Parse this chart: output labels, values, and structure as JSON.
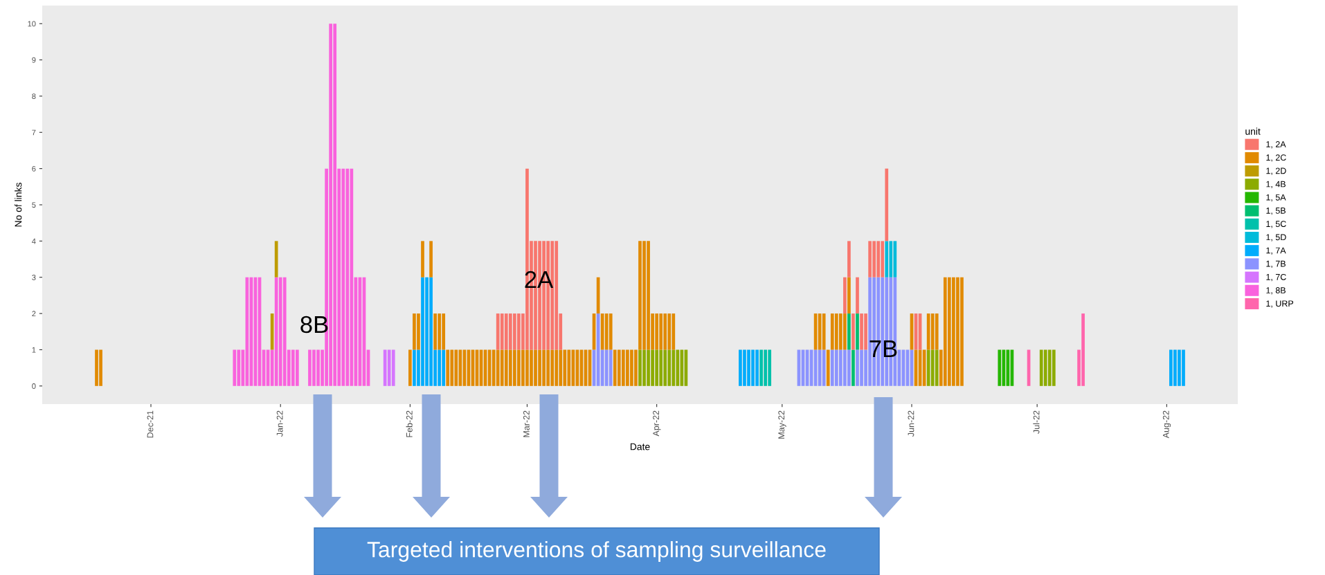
{
  "chart_data": {
    "type": "bar",
    "stacked": true,
    "xlabel": "Date",
    "ylabel": "No of links",
    "legend_title": "unit",
    "legend": "right",
    "grid": false,
    "xlim": [
      "2021-11-05",
      "2022-08-18"
    ],
    "xticks": [
      {
        "value": "2021-12-01",
        "label": "Dec-21"
      },
      {
        "value": "2022-01-01",
        "label": "Jan-22"
      },
      {
        "value": "2022-02-01",
        "label": "Feb-22"
      },
      {
        "value": "2022-03-01",
        "label": "Mar-22"
      },
      {
        "value": "2022-04-01",
        "label": "Apr-22"
      },
      {
        "value": "2022-05-01",
        "label": "May-22"
      },
      {
        "value": "2022-06-01",
        "label": "Jun-22"
      },
      {
        "value": "2022-07-01",
        "label": "Jul-22"
      },
      {
        "value": "2022-08-01",
        "label": "Aug-22"
      }
    ],
    "ylim": [
      -0.5,
      10.5
    ],
    "yticks": [
      0,
      1,
      2,
      3,
      4,
      5,
      6,
      7,
      8,
      9,
      10
    ],
    "x": [
      "2021-11-18",
      "2021-11-19",
      "2021-12-21",
      "2021-12-22",
      "2021-12-23",
      "2021-12-24",
      "2021-12-25",
      "2021-12-26",
      "2021-12-27",
      "2021-12-28",
      "2021-12-29",
      "2021-12-30",
      "2021-12-31",
      "2022-01-01",
      "2022-01-02",
      "2022-01-03",
      "2022-01-04",
      "2022-01-05",
      "2022-01-08",
      "2022-01-09",
      "2022-01-10",
      "2022-01-11",
      "2022-01-12",
      "2022-01-13",
      "2022-01-14",
      "2022-01-15",
      "2022-01-16",
      "2022-01-17",
      "2022-01-18",
      "2022-01-19",
      "2022-01-20",
      "2022-01-21",
      "2022-01-22",
      "2022-01-26",
      "2022-01-27",
      "2022-01-28",
      "2022-02-01",
      "2022-02-02",
      "2022-02-03",
      "2022-02-04",
      "2022-02-05",
      "2022-02-06",
      "2022-02-07",
      "2022-02-08",
      "2022-02-09",
      "2022-02-10",
      "2022-02-11",
      "2022-02-12",
      "2022-02-13",
      "2022-02-14",
      "2022-02-15",
      "2022-02-16",
      "2022-02-17",
      "2022-02-18",
      "2022-02-19",
      "2022-02-20",
      "2022-02-21",
      "2022-02-22",
      "2022-02-23",
      "2022-02-24",
      "2022-02-25",
      "2022-02-26",
      "2022-02-27",
      "2022-02-28",
      "2022-03-01",
      "2022-03-02",
      "2022-03-03",
      "2022-03-04",
      "2022-03-05",
      "2022-03-06",
      "2022-03-07",
      "2022-03-08",
      "2022-03-09",
      "2022-03-10",
      "2022-03-11",
      "2022-03-12",
      "2022-03-13",
      "2022-03-14",
      "2022-03-15",
      "2022-03-16",
      "2022-03-17",
      "2022-03-18",
      "2022-03-19",
      "2022-03-20",
      "2022-03-21",
      "2022-03-22",
      "2022-03-23",
      "2022-03-24",
      "2022-03-25",
      "2022-03-26",
      "2022-03-27",
      "2022-03-28",
      "2022-03-29",
      "2022-03-30",
      "2022-03-31",
      "2022-04-01",
      "2022-04-02",
      "2022-04-03",
      "2022-04-04",
      "2022-04-05",
      "2022-04-06",
      "2022-04-07",
      "2022-04-08",
      "2022-04-21",
      "2022-04-22",
      "2022-04-23",
      "2022-04-24",
      "2022-04-25",
      "2022-04-26",
      "2022-04-27",
      "2022-04-28",
      "2022-05-05",
      "2022-05-06",
      "2022-05-07",
      "2022-05-08",
      "2022-05-09",
      "2022-05-10",
      "2022-05-11",
      "2022-05-12",
      "2022-05-13",
      "2022-05-14",
      "2022-05-15",
      "2022-05-16",
      "2022-05-17",
      "2022-05-18",
      "2022-05-19",
      "2022-05-20",
      "2022-05-21",
      "2022-05-22",
      "2022-05-23",
      "2022-05-24",
      "2022-05-25",
      "2022-05-26",
      "2022-05-27",
      "2022-05-28",
      "2022-05-29",
      "2022-05-30",
      "2022-05-31",
      "2022-06-01",
      "2022-06-02",
      "2022-06-03",
      "2022-06-04",
      "2022-06-05",
      "2022-06-06",
      "2022-06-07",
      "2022-06-08",
      "2022-06-09",
      "2022-06-10",
      "2022-06-11",
      "2022-06-12",
      "2022-06-13",
      "2022-06-22",
      "2022-06-23",
      "2022-06-24",
      "2022-06-25",
      "2022-06-29",
      "2022-07-02",
      "2022-07-03",
      "2022-07-04",
      "2022-07-05",
      "2022-07-11",
      "2022-07-12",
      "2022-08-02",
      "2022-08-03",
      "2022-08-04",
      "2022-08-05"
    ],
    "series": [
      {
        "name": "1, URP",
        "color": "#ff65ac",
        "values": [
          null,
          null,
          null,
          null,
          null,
          null,
          null,
          null,
          null,
          null,
          null,
          null,
          null,
          null,
          null,
          null,
          null,
          null,
          null,
          null,
          null,
          null,
          null,
          null,
          null,
          null,
          null,
          null,
          null,
          null,
          null,
          null,
          null,
          null,
          null,
          null,
          null,
          null,
          null,
          null,
          null,
          null,
          null,
          null,
          null,
          null,
          null,
          null,
          null,
          null,
          null,
          null,
          null,
          null,
          null,
          null,
          null,
          null,
          null,
          null,
          null,
          null,
          null,
          null,
          null,
          null,
          null,
          null,
          null,
          null,
          null,
          null,
          null,
          null,
          null,
          null,
          null,
          null,
          null,
          null,
          null,
          null,
          null,
          null,
          null,
          null,
          null,
          null,
          null,
          null,
          null,
          null,
          null,
          null,
          null,
          null,
          null,
          null,
          null,
          null,
          null,
          null,
          null,
          null,
          null,
          null,
          null,
          null,
          null,
          null,
          null,
          null,
          null,
          null,
          null,
          null,
          null,
          null,
          null,
          null,
          null,
          null,
          null,
          null,
          null,
          null,
          null,
          null,
          null,
          null,
          null,
          null,
          null,
          null,
          null,
          null,
          null,
          null,
          null,
          null,
          null,
          null,
          null,
          null,
          null,
          null,
          null,
          null,
          null,
          null,
          null,
          null,
          null,
          null,
          null,
          1,
          null,
          null,
          null,
          null,
          1,
          2,
          null,
          null,
          null,
          null
        ]
      },
      {
        "name": "1, 8B",
        "color": "#f962dd",
        "values": [
          null,
          null,
          1,
          1,
          1,
          3,
          3,
          3,
          3,
          1,
          1,
          1,
          3,
          3,
          3,
          1,
          1,
          1,
          1,
          1,
          1,
          1,
          6,
          10,
          10,
          6,
          6,
          6,
          6,
          3,
          3,
          3,
          1,
          null,
          null,
          null,
          null,
          null,
          null,
          null,
          null,
          null,
          null,
          null,
          null,
          null,
          null,
          null,
          null,
          null,
          null,
          null,
          null,
          null,
          null,
          null,
          null,
          null,
          null,
          null,
          null,
          null,
          null,
          null,
          null,
          null,
          null,
          null,
          null,
          null,
          null,
          null,
          null,
          null,
          null,
          null,
          null,
          null,
          null,
          null,
          null,
          null,
          null,
          null,
          null,
          null,
          null,
          null,
          null,
          null,
          null,
          null,
          null,
          null,
          null,
          null,
          null,
          null,
          null,
          null,
          null,
          null,
          null,
          null,
          null,
          null,
          null,
          null,
          null,
          null,
          null,
          null,
          null,
          null,
          null,
          null,
          null,
          null,
          null,
          null,
          null,
          null,
          null,
          null,
          null,
          null,
          null,
          null,
          null,
          null,
          null,
          null,
          null,
          null,
          null,
          null,
          null,
          null,
          null,
          null,
          null,
          null,
          null,
          null,
          null,
          null,
          null,
          null,
          null,
          null,
          null,
          null,
          null,
          null,
          null,
          null,
          null,
          null,
          null,
          null,
          null,
          null,
          null,
          null,
          null,
          null
        ]
      },
      {
        "name": "1, 7C",
        "color": "#d575fe",
        "values": [
          null,
          null,
          null,
          null,
          null,
          null,
          null,
          null,
          null,
          null,
          null,
          null,
          null,
          null,
          null,
          null,
          null,
          null,
          null,
          null,
          null,
          null,
          null,
          null,
          null,
          null,
          null,
          null,
          null,
          null,
          null,
          null,
          null,
          1,
          1,
          1,
          null,
          null,
          null,
          null,
          null,
          null,
          null,
          null,
          null,
          null,
          null,
          null,
          null,
          null,
          null,
          null,
          null,
          null,
          null,
          null,
          null,
          null,
          null,
          null,
          null,
          null,
          null,
          null,
          null,
          null,
          null,
          null,
          null,
          null,
          null,
          null,
          null,
          null,
          null,
          null,
          null,
          null,
          null,
          null,
          null,
          null,
          null,
          null,
          null,
          null,
          null,
          null,
          null,
          null,
          null,
          null,
          null,
          null,
          null,
          null,
          null,
          null,
          null,
          null,
          null,
          null,
          null,
          null,
          null,
          null,
          null,
          null,
          null,
          null,
          null,
          null,
          null,
          null,
          null,
          null,
          null,
          null,
          null,
          null,
          null,
          null,
          null,
          null,
          null,
          null,
          null,
          null,
          null,
          null,
          null,
          null,
          null,
          null,
          null,
          null,
          null,
          null,
          null,
          null,
          null,
          null,
          null,
          null,
          null,
          null,
          null,
          null,
          null,
          null,
          null,
          null,
          null,
          null,
          null,
          null,
          null,
          null,
          null,
          null,
          null,
          null,
          null,
          null,
          null,
          null
        ]
      },
      {
        "name": "1, 7B",
        "color": "#8b93ff",
        "values": [
          null,
          null,
          null,
          null,
          null,
          null,
          null,
          null,
          null,
          null,
          null,
          null,
          null,
          null,
          null,
          null,
          null,
          null,
          null,
          null,
          null,
          null,
          null,
          null,
          null,
          null,
          null,
          null,
          null,
          null,
          null,
          null,
          null,
          null,
          null,
          null,
          null,
          null,
          null,
          null,
          null,
          null,
          null,
          null,
          null,
          null,
          null,
          null,
          null,
          null,
          null,
          null,
          null,
          null,
          null,
          null,
          null,
          null,
          null,
          null,
          null,
          null,
          null,
          null,
          null,
          null,
          null,
          null,
          null,
          null,
          null,
          null,
          null,
          null,
          null,
          null,
          null,
          null,
          null,
          null,
          1,
          2,
          1,
          1,
          1,
          null,
          null,
          null,
          null,
          null,
          null,
          null,
          null,
          null,
          null,
          null,
          null,
          null,
          null,
          null,
          null,
          null,
          null,
          null,
          null,
          null,
          null,
          null,
          null,
          null,
          null,
          1,
          1,
          1,
          1,
          1,
          1,
          1,
          null,
          1,
          1,
          1,
          1,
          1,
          null,
          1,
          1,
          1,
          3,
          3,
          3,
          3,
          3,
          3,
          3,
          1,
          1,
          1,
          1,
          null,
          null,
          null,
          null,
          null,
          null,
          null,
          null,
          null,
          null,
          null,
          null,
          null,
          null,
          null,
          null,
          null,
          null,
          null,
          null,
          null,
          null,
          null,
          null,
          null,
          null,
          null
        ]
      },
      {
        "name": "1, 7A",
        "color": "#00acfc",
        "values": [
          null,
          null,
          null,
          null,
          null,
          null,
          null,
          null,
          null,
          null,
          null,
          null,
          null,
          null,
          null,
          null,
          null,
          null,
          null,
          null,
          null,
          null,
          null,
          null,
          null,
          null,
          null,
          null,
          null,
          null,
          null,
          null,
          null,
          null,
          null,
          null,
          null,
          1,
          1,
          3,
          3,
          3,
          1,
          1,
          1,
          null,
          null,
          null,
          null,
          null,
          null,
          null,
          null,
          null,
          null,
          null,
          null,
          null,
          null,
          null,
          null,
          null,
          null,
          null,
          null,
          null,
          null,
          null,
          null,
          null,
          null,
          null,
          null,
          null,
          null,
          null,
          null,
          null,
          null,
          null,
          null,
          null,
          null,
          null,
          null,
          null,
          null,
          null,
          null,
          null,
          null,
          null,
          null,
          null,
          null,
          null,
          null,
          null,
          null,
          null,
          null,
          null,
          null,
          1,
          1,
          1,
          1,
          1,
          null,
          null,
          null,
          null,
          null,
          null,
          null,
          null,
          null,
          null,
          null,
          null,
          null,
          null,
          null,
          null,
          null,
          null,
          null,
          null,
          null,
          null,
          null,
          null,
          null,
          null,
          null,
          null,
          null,
          null,
          null,
          null,
          null,
          null,
          null,
          null,
          null,
          null,
          null,
          null,
          null,
          null,
          null,
          null,
          null,
          null,
          null,
          null,
          null,
          null,
          null,
          null,
          null,
          null,
          1,
          1,
          1,
          1
        ]
      },
      {
        "name": "1, 5D",
        "color": "#00bbda",
        "values": [
          null,
          null,
          null,
          null,
          null,
          null,
          null,
          null,
          null,
          null,
          null,
          null,
          null,
          null,
          null,
          null,
          null,
          null,
          null,
          null,
          null,
          null,
          null,
          null,
          null,
          null,
          null,
          null,
          null,
          null,
          null,
          null,
          null,
          null,
          null,
          null,
          null,
          null,
          null,
          null,
          null,
          null,
          null,
          null,
          null,
          null,
          null,
          null,
          null,
          null,
          null,
          null,
          null,
          null,
          null,
          null,
          null,
          null,
          null,
          null,
          null,
          null,
          null,
          null,
          null,
          null,
          null,
          null,
          null,
          null,
          null,
          null,
          null,
          null,
          null,
          null,
          null,
          null,
          null,
          null,
          null,
          null,
          null,
          null,
          null,
          null,
          null,
          null,
          null,
          null,
          null,
          null,
          null,
          null,
          null,
          null,
          null,
          null,
          null,
          null,
          null,
          null,
          null,
          null,
          null,
          null,
          null,
          null,
          null,
          null,
          null,
          null,
          null,
          null,
          null,
          null,
          null,
          null,
          null,
          null,
          null,
          null,
          null,
          null,
          null,
          null,
          null,
          null,
          null,
          null,
          null,
          null,
          1,
          1,
          1,
          null,
          null,
          null,
          null,
          null,
          null,
          null,
          null,
          null,
          null,
          null,
          null,
          null,
          null,
          null,
          null,
          null,
          null,
          null,
          null,
          null,
          null,
          null,
          null,
          null,
          null,
          null,
          null,
          null,
          null,
          null
        ]
      },
      {
        "name": "1, 5C",
        "color": "#00c1ab",
        "values": [
          null,
          null,
          null,
          null,
          null,
          null,
          null,
          null,
          null,
          null,
          null,
          null,
          null,
          null,
          null,
          null,
          null,
          null,
          null,
          null,
          null,
          null,
          null,
          null,
          null,
          null,
          null,
          null,
          null,
          null,
          null,
          null,
          null,
          null,
          null,
          null,
          null,
          null,
          null,
          null,
          null,
          null,
          null,
          null,
          null,
          null,
          null,
          null,
          null,
          null,
          null,
          null,
          null,
          null,
          null,
          null,
          null,
          null,
          null,
          null,
          null,
          null,
          null,
          null,
          null,
          null,
          null,
          null,
          null,
          null,
          null,
          null,
          null,
          null,
          null,
          null,
          null,
          null,
          null,
          null,
          null,
          null,
          null,
          null,
          null,
          null,
          null,
          null,
          null,
          null,
          null,
          null,
          null,
          null,
          null,
          null,
          null,
          null,
          null,
          null,
          null,
          null,
          null,
          null,
          null,
          null,
          null,
          null,
          1,
          1,
          1,
          null,
          null,
          null,
          null,
          null,
          null,
          null,
          null,
          null,
          null,
          null,
          null,
          null,
          null,
          null,
          null,
          null,
          null,
          null,
          null,
          null,
          null,
          null,
          null,
          null,
          null,
          null,
          null,
          null,
          null,
          null,
          null,
          null,
          null,
          null,
          null,
          null,
          null,
          null,
          null,
          null,
          null,
          null,
          null,
          null,
          null,
          null,
          null,
          null,
          null,
          null,
          null,
          null,
          null,
          null
        ]
      },
      {
        "name": "1, 5B",
        "color": "#00be70",
        "values": [
          null,
          null,
          null,
          null,
          null,
          null,
          null,
          null,
          null,
          null,
          null,
          null,
          null,
          null,
          null,
          null,
          null,
          null,
          null,
          null,
          null,
          null,
          null,
          null,
          null,
          null,
          null,
          null,
          null,
          null,
          null,
          null,
          null,
          null,
          null,
          null,
          null,
          null,
          null,
          null,
          null,
          null,
          null,
          null,
          null,
          null,
          null,
          null,
          null,
          null,
          null,
          null,
          null,
          null,
          null,
          null,
          null,
          null,
          null,
          null,
          null,
          null,
          null,
          null,
          null,
          null,
          null,
          null,
          null,
          null,
          null,
          null,
          null,
          null,
          null,
          null,
          null,
          null,
          null,
          null,
          null,
          null,
          null,
          null,
          null,
          null,
          null,
          null,
          null,
          null,
          null,
          null,
          null,
          null,
          null,
          null,
          null,
          null,
          null,
          null,
          null,
          null,
          null,
          null,
          null,
          null,
          null,
          null,
          null,
          null,
          null,
          null,
          null,
          null,
          null,
          null,
          null,
          null,
          null,
          null,
          null,
          null,
          null,
          1,
          1,
          1,
          null,
          null,
          null,
          null,
          null,
          null,
          null,
          null,
          null,
          null,
          null,
          null,
          null,
          null,
          null,
          null,
          null,
          null,
          null,
          null,
          null,
          null,
          null,
          null,
          null,
          null,
          null,
          null,
          null,
          null,
          null,
          null,
          null,
          null,
          null,
          null,
          null,
          null,
          null,
          null
        ]
      },
      {
        "name": "1, 5A",
        "color": "#24b700",
        "values": [
          null,
          null,
          null,
          null,
          null,
          null,
          null,
          null,
          null,
          null,
          null,
          null,
          null,
          null,
          null,
          null,
          null,
          null,
          null,
          null,
          null,
          null,
          null,
          null,
          null,
          null,
          null,
          null,
          null,
          null,
          null,
          null,
          null,
          null,
          null,
          null,
          null,
          null,
          null,
          null,
          null,
          null,
          null,
          null,
          null,
          null,
          null,
          null,
          null,
          null,
          null,
          null,
          null,
          null,
          null,
          null,
          null,
          null,
          null,
          null,
          null,
          null,
          null,
          null,
          null,
          null,
          null,
          null,
          null,
          null,
          null,
          null,
          null,
          null,
          null,
          null,
          null,
          null,
          null,
          null,
          null,
          null,
          null,
          null,
          null,
          null,
          null,
          null,
          null,
          null,
          null,
          null,
          null,
          null,
          null,
          null,
          null,
          null,
          null,
          null,
          null,
          null,
          null,
          null,
          null,
          null,
          null,
          null,
          null,
          null,
          null,
          null,
          null,
          null,
          null,
          null,
          null,
          null,
          null,
          null,
          null,
          null,
          null,
          null,
          null,
          null,
          null,
          null,
          null,
          null,
          null,
          null,
          null,
          null,
          null,
          null,
          null,
          null,
          null,
          null,
          null,
          null,
          null,
          null,
          null,
          null,
          null,
          null,
          null,
          null,
          null,
          1,
          1,
          1,
          1,
          null,
          null,
          null,
          null,
          null,
          null,
          null,
          null,
          null,
          null,
          null
        ]
      },
      {
        "name": "1, 4B",
        "color": "#8cab00",
        "values": [
          null,
          null,
          null,
          null,
          null,
          null,
          null,
          null,
          null,
          null,
          null,
          null,
          null,
          null,
          null,
          null,
          null,
          null,
          null,
          null,
          null,
          null,
          null,
          null,
          null,
          null,
          null,
          null,
          null,
          null,
          null,
          null,
          null,
          null,
          null,
          null,
          null,
          null,
          null,
          null,
          null,
          null,
          null,
          null,
          null,
          null,
          null,
          null,
          null,
          null,
          null,
          null,
          null,
          null,
          null,
          null,
          null,
          null,
          null,
          null,
          null,
          null,
          null,
          null,
          null,
          null,
          null,
          null,
          null,
          null,
          null,
          null,
          null,
          null,
          null,
          null,
          null,
          null,
          null,
          null,
          null,
          null,
          null,
          null,
          null,
          null,
          null,
          null,
          null,
          null,
          null,
          1,
          1,
          1,
          1,
          1,
          1,
          1,
          1,
          1,
          1,
          1,
          1,
          null,
          null,
          null,
          null,
          null,
          null,
          null,
          null,
          null,
          null,
          null,
          null,
          null,
          null,
          null,
          null,
          null,
          null,
          null,
          null,
          null,
          null,
          null,
          null,
          null,
          null,
          null,
          null,
          null,
          null,
          null,
          null,
          null,
          null,
          null,
          null,
          null,
          null,
          null,
          1,
          1,
          1,
          null,
          null,
          null,
          null,
          null,
          null,
          null,
          null,
          null,
          null,
          null,
          1,
          1,
          1,
          1,
          null,
          null,
          null,
          null,
          null,
          null
        ]
      },
      {
        "name": "1, 2D",
        "color": "#be9c00",
        "values": [
          null,
          null,
          null,
          null,
          null,
          null,
          null,
          null,
          null,
          null,
          null,
          1,
          1,
          null,
          null,
          null,
          null,
          null,
          null,
          null,
          null,
          null,
          null,
          null,
          null,
          null,
          null,
          null,
          null,
          null,
          null,
          null,
          null,
          null,
          null,
          null,
          null,
          null,
          null,
          null,
          null,
          null,
          null,
          null,
          null,
          null,
          null,
          null,
          null,
          null,
          null,
          null,
          null,
          null,
          null,
          null,
          null,
          null,
          null,
          null,
          null,
          null,
          null,
          null,
          null,
          null,
          null,
          null,
          null,
          null,
          null,
          null,
          null,
          null,
          null,
          null,
          null,
          null,
          null,
          null,
          null,
          null,
          null,
          null,
          null,
          null,
          null,
          null,
          null,
          null,
          null,
          null,
          null,
          null,
          null,
          null,
          null,
          null,
          null,
          null,
          null,
          null,
          null,
          null,
          null,
          null,
          null,
          null,
          null,
          null,
          null,
          null,
          null,
          null,
          null,
          null,
          null,
          null,
          null,
          null,
          null,
          null,
          null,
          null,
          null,
          null,
          null,
          null,
          null,
          null,
          null,
          null,
          null,
          null,
          null,
          null,
          null,
          null,
          null,
          null,
          null,
          null,
          null,
          null,
          null,
          null,
          null,
          null,
          null,
          null,
          null,
          null,
          null,
          null,
          null,
          null,
          null,
          null,
          null,
          null,
          null,
          null,
          null,
          null,
          null,
          null
        ]
      },
      {
        "name": "1, 2C",
        "color": "#e18a00",
        "values": [
          1,
          1,
          null,
          null,
          null,
          null,
          null,
          null,
          null,
          null,
          null,
          null,
          null,
          null,
          null,
          null,
          null,
          null,
          null,
          null,
          null,
          null,
          null,
          null,
          null,
          null,
          null,
          null,
          null,
          null,
          null,
          null,
          null,
          null,
          null,
          null,
          1,
          1,
          1,
          1,
          null,
          1,
          1,
          1,
          1,
          1,
          1,
          1,
          1,
          1,
          1,
          1,
          1,
          1,
          1,
          1,
          1,
          1,
          1,
          1,
          1,
          1,
          1,
          1,
          1,
          1,
          1,
          1,
          1,
          1,
          1,
          1,
          1,
          1,
          1,
          1,
          1,
          1,
          1,
          1,
          1,
          1,
          1,
          1,
          1,
          1,
          1,
          1,
          1,
          1,
          1,
          3,
          3,
          3,
          1,
          1,
          1,
          1,
          1,
          1,
          null,
          null,
          null,
          null,
          null,
          null,
          null,
          null,
          null,
          null,
          null,
          null,
          null,
          null,
          null,
          1,
          1,
          1,
          1,
          1,
          1,
          1,
          1,
          1,
          null,
          null,
          null,
          null,
          null,
          null,
          null,
          null,
          null,
          null,
          null,
          null,
          null,
          null,
          1,
          1,
          1,
          1,
          1,
          1,
          1,
          1,
          3,
          3,
          3,
          3,
          3,
          null,
          null,
          null,
          null,
          null,
          null,
          null,
          null,
          null,
          null,
          null,
          null,
          null,
          null,
          null
        ]
      },
      {
        "name": "1, 2A",
        "color": "#f8766d",
        "values": [
          null,
          null,
          null,
          null,
          null,
          null,
          null,
          null,
          null,
          null,
          null,
          null,
          null,
          null,
          null,
          null,
          null,
          null,
          null,
          null,
          null,
          null,
          null,
          null,
          null,
          null,
          null,
          null,
          null,
          null,
          null,
          null,
          null,
          null,
          null,
          null,
          null,
          null,
          null,
          null,
          null,
          null,
          null,
          null,
          null,
          null,
          null,
          null,
          null,
          null,
          null,
          null,
          null,
          null,
          null,
          null,
          null,
          1,
          1,
          1,
          1,
          1,
          1,
          1,
          5,
          3,
          3,
          3,
          3,
          3,
          3,
          3,
          1,
          null,
          null,
          null,
          null,
          null,
          null,
          null,
          null,
          null,
          null,
          null,
          null,
          null,
          null,
          null,
          null,
          null,
          null,
          null,
          null,
          null,
          null,
          null,
          null,
          null,
          null,
          null,
          null,
          null,
          null,
          null,
          null,
          null,
          null,
          null,
          null,
          null,
          null,
          null,
          null,
          null,
          null,
          null,
          null,
          null,
          null,
          null,
          null,
          null,
          1,
          1,
          1,
          1,
          1,
          1,
          1,
          1,
          1,
          1,
          2,
          null,
          null,
          null,
          null,
          null,
          null,
          1,
          1,
          null,
          null,
          null,
          null,
          null,
          null,
          null,
          null,
          null,
          null,
          null,
          null,
          null,
          null,
          null,
          null,
          null,
          null,
          null,
          null,
          null,
          null,
          null,
          null,
          null
        ]
      }
    ],
    "annotations": [
      "8B",
      "2A",
      "7B",
      "Targeted interventions of sampling surveillance"
    ]
  }
}
